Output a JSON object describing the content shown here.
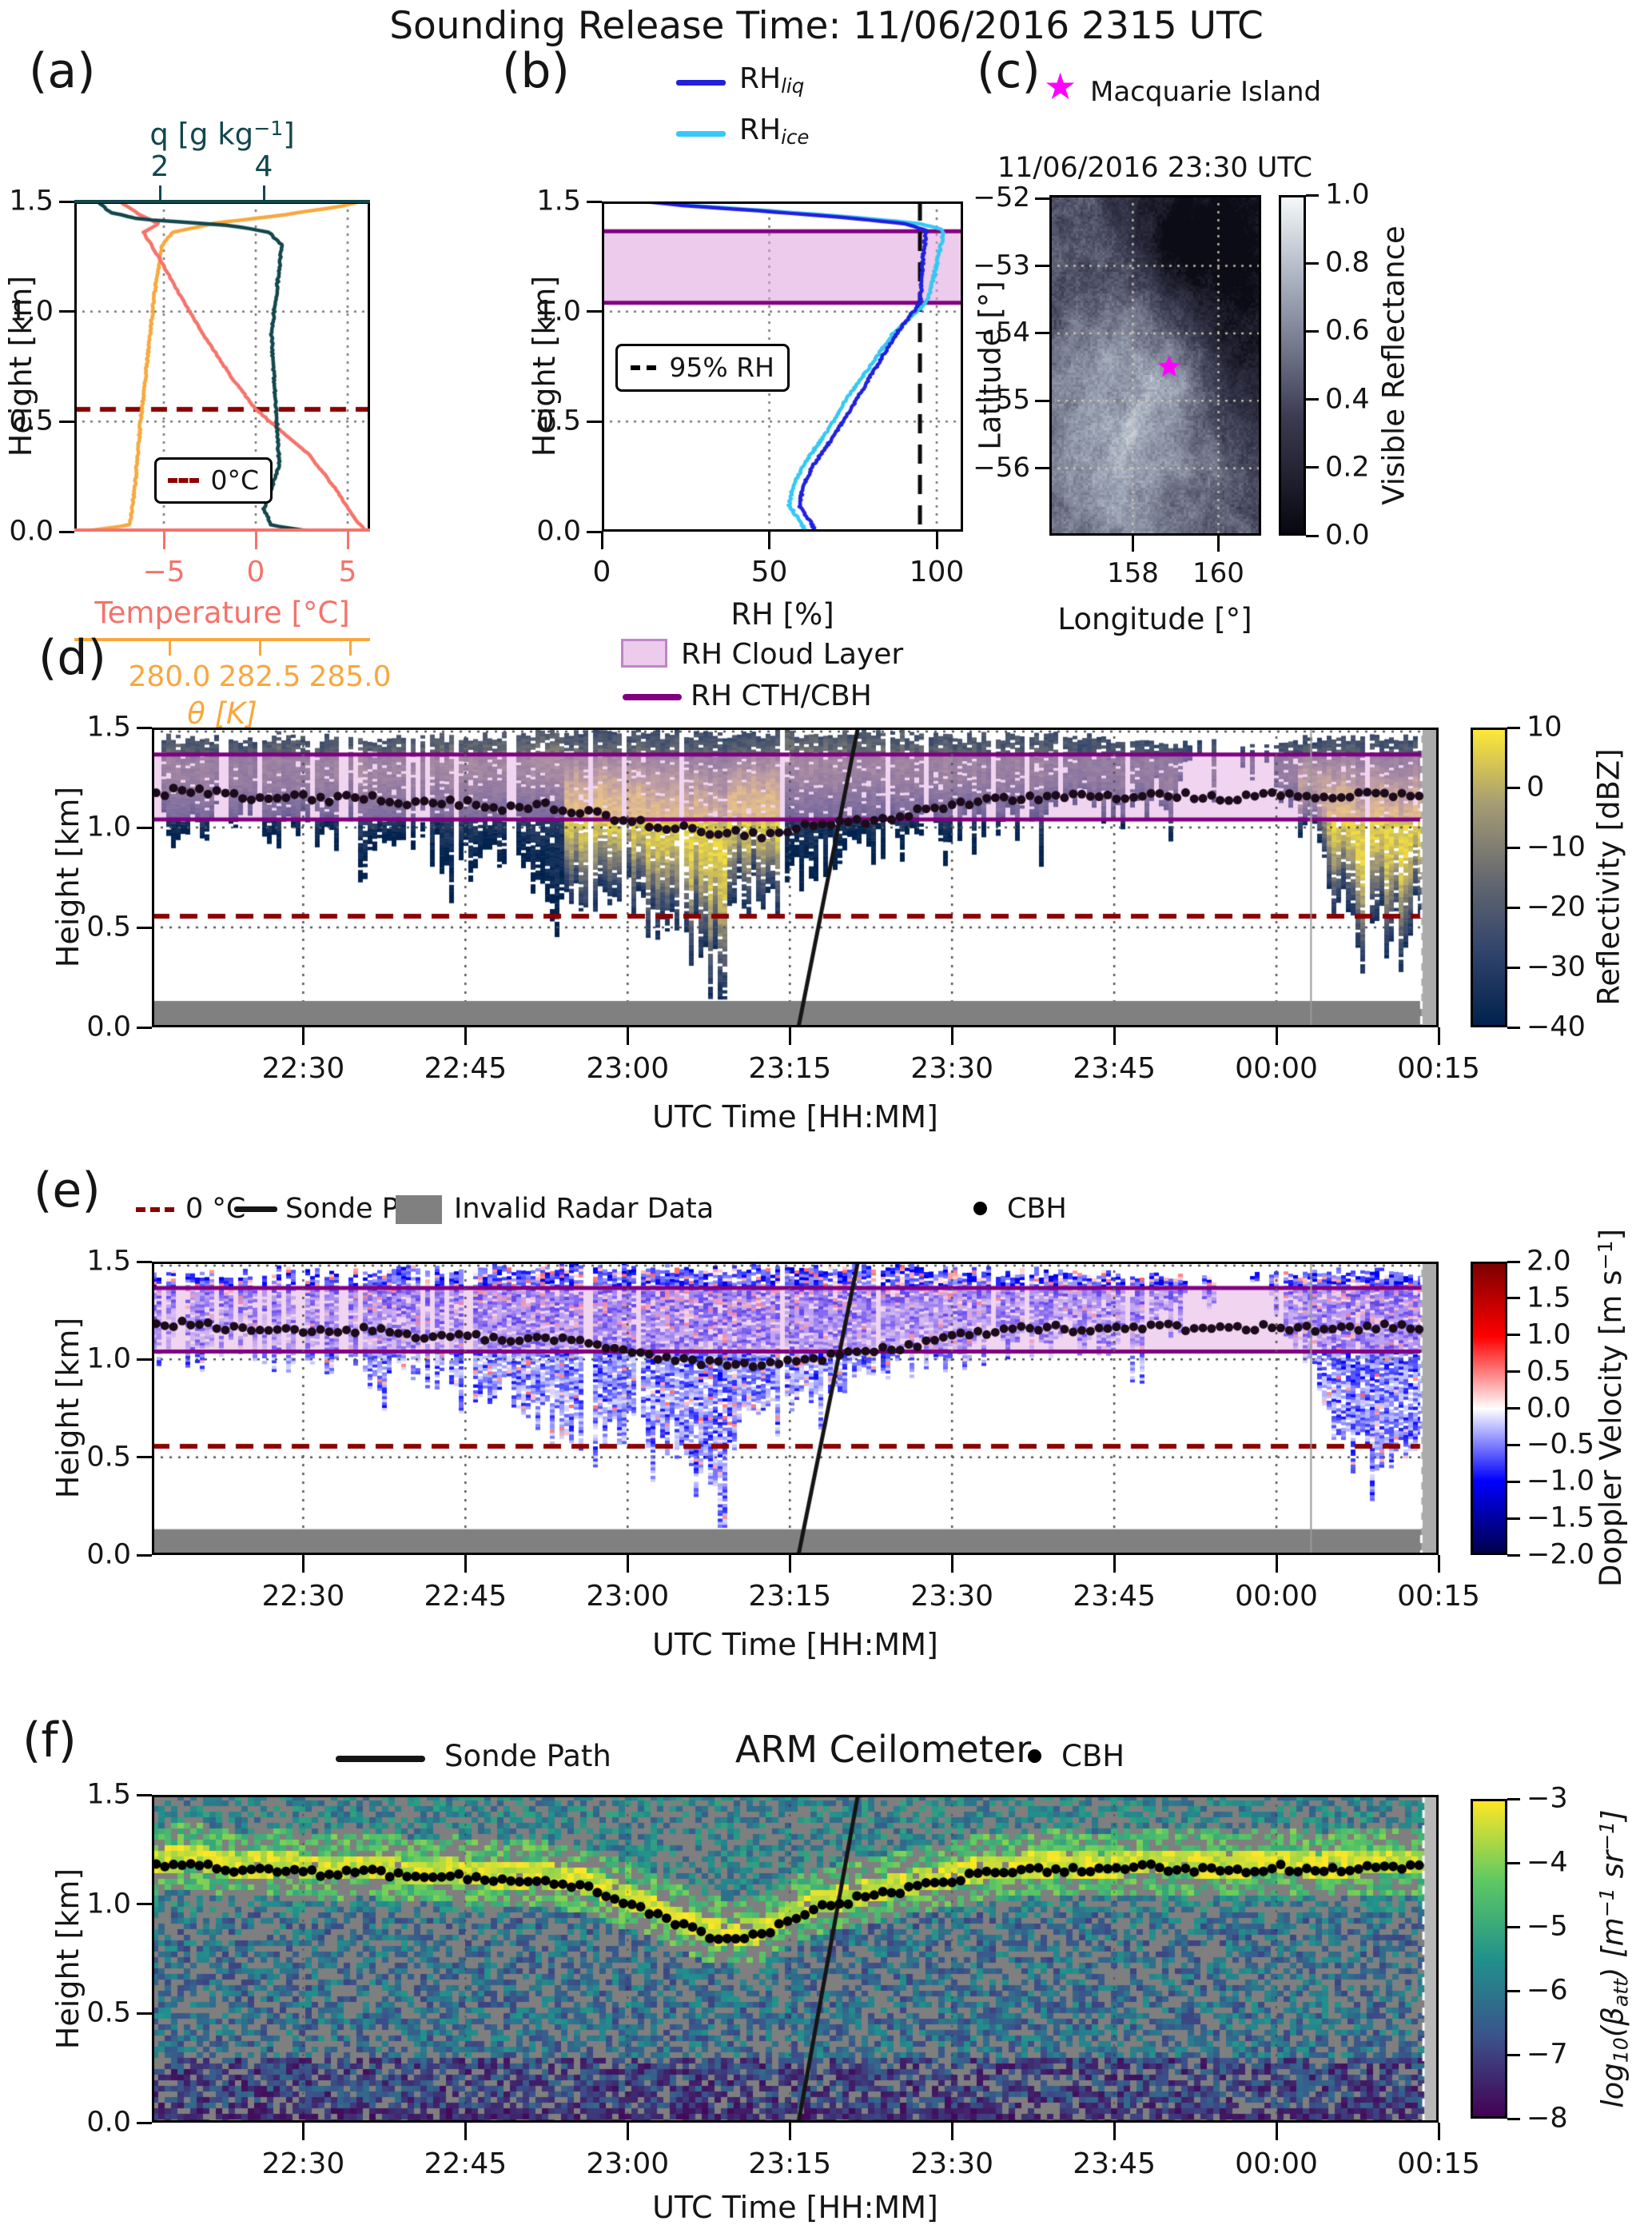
{
  "title": "Sounding Release Time: 11/06/2016 2315 UTC",
  "colors": {
    "temperature": "#f4736b",
    "theta": "#f7a83e",
    "q": "#12474d",
    "rh_liq": "#2020dd",
    "rh_ice": "#35c8f5",
    "cloud_band_fill": "#dda0dd",
    "cth_cbh_line": "#800080",
    "zero_c": "#8b0000",
    "invalid_gray": "#808080",
    "station_star": "#ff00ff",
    "sonde_path": "#151515",
    "cbh_dot": "#150515"
  },
  "panel_a": {
    "letter": "(a)",
    "q_label_parts": {
      "p1": "q [g kg",
      "sup": "−1",
      "p2": "]"
    },
    "q_ticks": [
      "2",
      "4"
    ],
    "height_label": "Height [km]",
    "height_ticks": [
      "0.0",
      "0.5",
      "1.0",
      "1.5"
    ],
    "temp_label": "Temperature [°C]",
    "temp_ticks": [
      "−5",
      "0",
      "5"
    ],
    "theta_label": "θ [K]",
    "theta_ticks": [
      "280.0",
      "282.5",
      "285.0"
    ],
    "legend_zero": "0°C"
  },
  "panel_b": {
    "letter": "(b)",
    "legend_liq_main": "RH",
    "legend_liq_sub": "liq",
    "legend_ice_main": "RH",
    "legend_ice_sub": "ice",
    "height_label": "Height [km]",
    "height_ticks": [
      "0.0",
      "0.5",
      "1.0",
      "1.5"
    ],
    "rh_label": "RH [%]",
    "rh_ticks": [
      "0",
      "50",
      "100"
    ],
    "legend_95": "95% RH"
  },
  "panel_c": {
    "letter": "(c)",
    "legend_star": "Macquarie Island",
    "subtitle": "11/06/2016 23:30 UTC",
    "lat_label": "Latitude [°]",
    "lat_ticks": [
      "−52",
      "−53",
      "−54",
      "−55",
      "−56"
    ],
    "lon_label": "Longitude [°]",
    "lon_ticks": [
      "158",
      "160"
    ],
    "cbar_label": "Visible Reflectance",
    "cbar_ticks": [
      "1.0",
      "0.8",
      "0.6",
      "0.4",
      "0.2",
      "0.0"
    ]
  },
  "legend_mid": {
    "cloud_layer": "RH Cloud Layer",
    "cth_cbh": "RH CTH/CBH"
  },
  "panel_d": {
    "letter": "(d)",
    "height_label": "Height [km]",
    "height_ticks": [
      "0.0",
      "0.5",
      "1.0",
      "1.5"
    ],
    "time_label": "UTC Time [HH:MM]",
    "time_ticks": [
      "22:30",
      "22:45",
      "23:00",
      "23:15",
      "23:30",
      "23:45",
      "00:00",
      "00:15"
    ],
    "cbar_label": "Reflectivity [dBZ]",
    "cbar_ticks": [
      "10",
      "0",
      "−10",
      "−20",
      "−30",
      "−40"
    ]
  },
  "panel_e": {
    "letter": "(e)",
    "legend": {
      "zero": "0 °C",
      "sonde": "Sonde Path",
      "invalid": "Invalid Radar Data",
      "cbh": "CBH"
    },
    "height_label": "Height [km]",
    "height_ticks": [
      "0.0",
      "0.5",
      "1.0",
      "1.5"
    ],
    "time_label": "UTC Time [HH:MM]",
    "time_ticks": [
      "22:30",
      "22:45",
      "23:00",
      "23:15",
      "23:30",
      "23:45",
      "00:00",
      "00:15"
    ],
    "cbar_label_parts": {
      "p1": "Doppler Velocity [m s",
      "u1": "−1",
      "p2": "]"
    },
    "cbar_ticks": [
      "2.0",
      "1.5",
      "1.0",
      "0.5",
      "0.0",
      "−0.5",
      "−1.0",
      "−1.5",
      "−2.0"
    ]
  },
  "panel_f": {
    "letter": "(f)",
    "legend_sonde": "Sonde Path",
    "title": "ARM Ceilometer",
    "legend_cbh": "CBH",
    "height_label": "Height [km]",
    "height_ticks": [
      "0.0",
      "0.5",
      "1.0",
      "1.5"
    ],
    "time_label": "UTC Time [HH:MM]",
    "time_ticks": [
      "22:30",
      "22:45",
      "23:00",
      "23:15",
      "23:30",
      "23:45",
      "00:00",
      "00:15"
    ],
    "cbar_label_parts": {
      "p1": "log",
      "s1": "10",
      "p2": "(β",
      "s2": "att",
      "p3": ") [m",
      "u1": "−1",
      "p4": " sr",
      "u2": "−1",
      "p5": "]"
    },
    "cbar_ticks": [
      "−3",
      "−4",
      "−5",
      "−6",
      "−7",
      "−8"
    ]
  },
  "chart_data": {
    "a": {
      "type": "line",
      "height_range_km": [
        0,
        1.5
      ],
      "temp_domain_c": [
        -9.87,
        6.22
      ],
      "temp_tick_values": [
        -5,
        0,
        5
      ],
      "q_domain_gkg": [
        0.35,
        6.05
      ],
      "q_tick_values": [
        2,
        4
      ],
      "theta_domain_k": [
        277.37,
        285.55
      ],
      "theta_tick_values": [
        280.0,
        282.5,
        285.0
      ],
      "zero_c_km": 0.556,
      "temp_profile": [
        [
          0,
          6.0
        ],
        [
          0.08,
          5.2
        ],
        [
          0.2,
          4.3
        ],
        [
          0.35,
          2.9
        ],
        [
          0.556,
          0.0
        ],
        [
          0.7,
          -1.3
        ],
        [
          0.9,
          -2.9
        ],
        [
          1.1,
          -4.3
        ],
        [
          1.25,
          -5.3
        ],
        [
          1.36,
          -6.1
        ],
        [
          1.4,
          -5.3
        ],
        [
          1.44,
          -6.3
        ],
        [
          1.5,
          -7.4
        ]
      ],
      "q_profile": [
        [
          0,
          4.9
        ],
        [
          0.03,
          4.15
        ],
        [
          0.1,
          4.0
        ],
        [
          0.3,
          4.3
        ],
        [
          0.5,
          4.25
        ],
        [
          0.7,
          4.2
        ],
        [
          0.9,
          4.15
        ],
        [
          1.1,
          4.25
        ],
        [
          1.3,
          4.35
        ],
        [
          1.36,
          4.1
        ],
        [
          1.39,
          3.4
        ],
        [
          1.42,
          1.6
        ],
        [
          1.45,
          1.05
        ],
        [
          1.5,
          0.8
        ]
      ],
      "theta_profile": [
        [
          0,
          277.6
        ],
        [
          0.03,
          278.9
        ],
        [
          0.2,
          279.05
        ],
        [
          0.5,
          279.2
        ],
        [
          0.8,
          279.4
        ],
        [
          1.1,
          279.6
        ],
        [
          1.3,
          279.8
        ],
        [
          1.36,
          280.1
        ],
        [
          1.4,
          281.2
        ],
        [
          1.44,
          283.2
        ],
        [
          1.48,
          284.8
        ],
        [
          1.5,
          285.3
        ]
      ]
    },
    "b": {
      "type": "line",
      "rh_domain_pct": [
        0,
        107.9
      ],
      "rh_tick_values": [
        0,
        50,
        100
      ],
      "rh_95_line_pct": 95,
      "cloud_top_km": 1.365,
      "cloud_base_km": 1.04,
      "rh_liq_profile": [
        [
          0,
          64
        ],
        [
          0.05,
          62
        ],
        [
          0.12,
          59
        ],
        [
          0.2,
          60
        ],
        [
          0.3,
          63
        ],
        [
          0.45,
          70
        ],
        [
          0.6,
          76
        ],
        [
          0.75,
          82
        ],
        [
          0.9,
          88
        ],
        [
          1.0,
          93
        ],
        [
          1.04,
          95
        ],
        [
          1.15,
          95.5
        ],
        [
          1.25,
          96
        ],
        [
          1.32,
          96.5
        ],
        [
          1.37,
          97
        ],
        [
          1.4,
          90
        ],
        [
          1.43,
          70
        ],
        [
          1.46,
          45
        ],
        [
          1.48,
          25
        ],
        [
          1.5,
          13
        ]
      ],
      "rh_ice_profile": [
        [
          0,
          61
        ],
        [
          0.05,
          59
        ],
        [
          0.12,
          56
        ],
        [
          0.2,
          57
        ],
        [
          0.3,
          60
        ],
        [
          0.45,
          67
        ],
        [
          0.6,
          73
        ],
        [
          0.75,
          80
        ],
        [
          0.9,
          87
        ],
        [
          1.0,
          94
        ],
        [
          1.04,
          97
        ],
        [
          1.15,
          99
        ],
        [
          1.25,
          100.5
        ],
        [
          1.32,
          101.5
        ],
        [
          1.37,
          102
        ],
        [
          1.4,
          95
        ],
        [
          1.43,
          74
        ],
        [
          1.46,
          48
        ],
        [
          1.48,
          28
        ],
        [
          1.5,
          15
        ]
      ]
    },
    "c": {
      "type": "heatmap",
      "lon_range": [
        156.05,
        161.0
      ],
      "lat_range": [
        -51.95,
        -57.0
      ],
      "grid_lons": [
        158,
        160
      ],
      "grid_lats": [
        -53,
        -54,
        -55,
        -56
      ],
      "station_lon_lat": [
        158.85,
        -54.5
      ],
      "reflectance_range": [
        0,
        1
      ]
    },
    "d": {
      "type": "heatmap",
      "time_start": "22:16",
      "time_span_minutes": 119,
      "time_tick_minutes": [
        14,
        29,
        44,
        59,
        74,
        89,
        104,
        119
      ],
      "height_range_km": [
        0,
        1.5
      ],
      "reflectivity_range_dbz": [
        -40,
        10
      ],
      "cloud_top_km": 1.365,
      "cloud_base_km": 1.04,
      "zero_c_km": 0.556,
      "invalid_top_km": 0.132,
      "sonde_path": [
        [
          59.8,
          0
        ],
        [
          65.3,
          1.5
        ]
      ],
      "data_end_minute": 117.4,
      "gap_line_minute": 107.2,
      "echo_envelope": [
        [
          0,
          1.05,
          1.43
        ],
        [
          4,
          1.0,
          1.44
        ],
        [
          8,
          1.08,
          1.42
        ],
        [
          12,
          0.95,
          1.45
        ],
        [
          16,
          1.02,
          1.43
        ],
        [
          20,
          0.88,
          1.44
        ],
        [
          24,
          0.98,
          1.45
        ],
        [
          28,
          0.8,
          1.44
        ],
        [
          32,
          0.88,
          1.46
        ],
        [
          36,
          0.7,
          1.46
        ],
        [
          40,
          0.62,
          1.47
        ],
        [
          44,
          0.66,
          1.47
        ],
        [
          48,
          0.6,
          1.46
        ],
        [
          52,
          0.35,
          1.45
        ],
        [
          54,
          0.65,
          1.45
        ],
        [
          58,
          0.7,
          1.46
        ],
        [
          62,
          0.85,
          1.46
        ],
        [
          66,
          0.95,
          1.47
        ],
        [
          70,
          1.0,
          1.46
        ],
        [
          74,
          1.02,
          1.45
        ],
        [
          78,
          1.08,
          1.44
        ],
        [
          82,
          1.05,
          1.45
        ],
        [
          86,
          1.12,
          1.44
        ],
        [
          90,
          1.1,
          1.43
        ],
        [
          94,
          1.18,
          1.42
        ],
        [
          97,
          1.28,
          1.41
        ],
        [
          100,
          1.34,
          1.4
        ],
        [
          103,
          1.3,
          1.42
        ],
        [
          106,
          1.1,
          1.43
        ],
        [
          109,
          0.75,
          1.44
        ],
        [
          112,
          0.55,
          1.44
        ],
        [
          115,
          0.5,
          1.43
        ],
        [
          118,
          0.6,
          1.42
        ],
        [
          119,
          0.65,
          1.41
        ]
      ],
      "cbh_waypoints": [
        [
          0,
          1.17
        ],
        [
          4,
          1.19
        ],
        [
          8,
          1.15
        ],
        [
          12,
          1.16
        ],
        [
          16,
          1.14
        ],
        [
          20,
          1.15
        ],
        [
          24,
          1.12
        ],
        [
          28,
          1.13
        ],
        [
          32,
          1.1
        ],
        [
          36,
          1.11
        ],
        [
          40,
          1.08
        ],
        [
          44,
          1.03
        ],
        [
          48,
          1.0
        ],
        [
          52,
          0.98
        ],
        [
          56,
          0.96
        ],
        [
          60,
          1.0
        ],
        [
          64,
          1.02
        ],
        [
          68,
          1.05
        ],
        [
          72,
          1.09
        ],
        [
          76,
          1.13
        ],
        [
          80,
          1.15
        ],
        [
          84,
          1.16
        ],
        [
          88,
          1.15
        ],
        [
          92,
          1.17
        ],
        [
          96,
          1.16
        ],
        [
          100,
          1.15
        ],
        [
          104,
          1.17
        ],
        [
          108,
          1.15
        ],
        [
          112,
          1.16
        ],
        [
          116,
          1.17
        ],
        [
          119,
          1.16
        ]
      ]
    },
    "e": {
      "type": "heatmap",
      "velocity_range_ms": [
        -2,
        2
      ],
      "time_start": "22:16",
      "time_span_minutes": 119,
      "cloud_top_km": 1.365,
      "cloud_base_km": 1.04,
      "zero_c_km": 0.556,
      "invalid_top_km": 0.132,
      "sonde_path": [
        [
          59.8,
          0
        ],
        [
          65.3,
          1.5
        ]
      ],
      "data_end_minute": 117.4,
      "gap_line_minute": 107.2
    },
    "f": {
      "type": "heatmap",
      "backscatter_log_range": [
        -8,
        -3
      ],
      "time_start": "22:16",
      "time_span_minutes": 119,
      "band_dip": {
        "center_minute": 53,
        "depth_km": 0.13,
        "width": 50
      },
      "gray_fraction": 0.4,
      "sonde_path": [
        [
          59.8,
          0
        ],
        [
          65.3,
          1.5
        ]
      ],
      "data_end_minute": 117.6
    },
    "colormaps": {
      "cividis": [
        [
          0,
          "#00224e"
        ],
        [
          0.25,
          "#31446b"
        ],
        [
          0.5,
          "#666970"
        ],
        [
          0.75,
          "#a59c74"
        ],
        [
          1,
          "#fee838"
        ]
      ],
      "seismic": [
        [
          0,
          "#00004c"
        ],
        [
          0.25,
          "#0000ff"
        ],
        [
          0.5,
          "#ffffff"
        ],
        [
          0.75,
          "#ff0000"
        ],
        [
          1,
          "#7f0000"
        ]
      ],
      "viridis": [
        [
          0,
          "#440154"
        ],
        [
          0.25,
          "#3b528b"
        ],
        [
          0.5,
          "#21918c"
        ],
        [
          0.75,
          "#5ec962"
        ],
        [
          1,
          "#fde725"
        ]
      ],
      "bone": [
        [
          0,
          "#070710"
        ],
        [
          0.35,
          "#3c3c52"
        ],
        [
          0.7,
          "#9aa2b2"
        ],
        [
          1,
          "#f4f8fa"
        ]
      ]
    }
  }
}
